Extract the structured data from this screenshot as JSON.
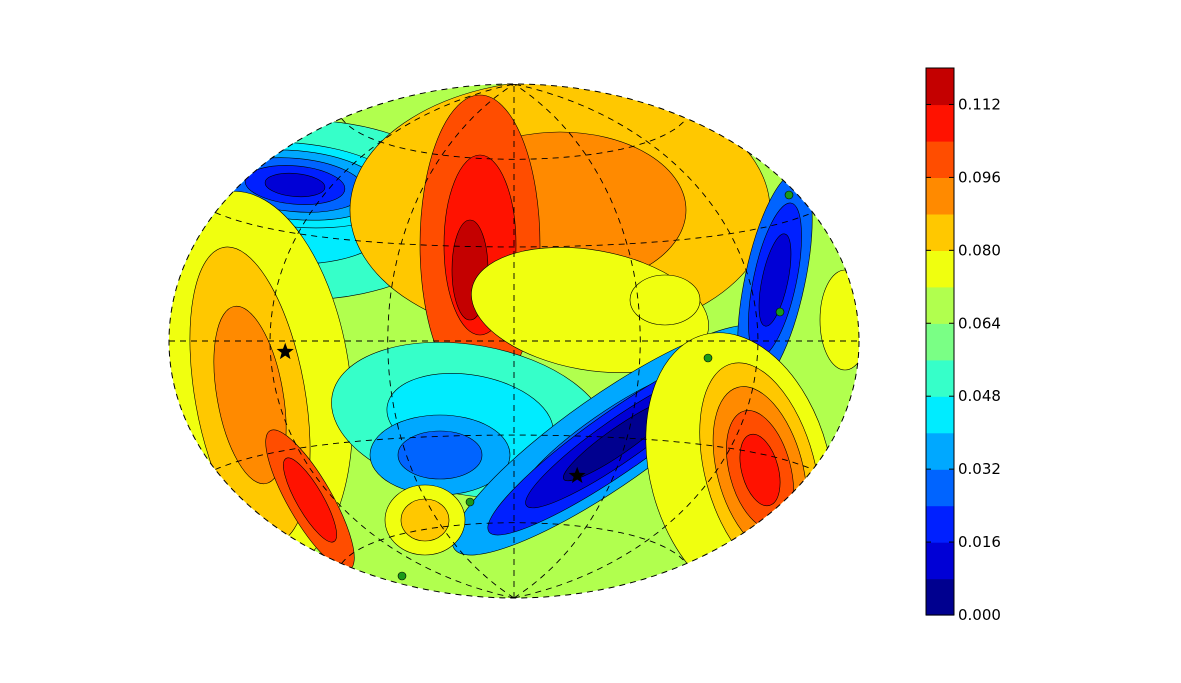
{
  "chart_data": {
    "type": "heatmap",
    "projection": "hammer-aitoff (all-sky)",
    "colormap": "jet",
    "contour_style": "filled with thin black contour lines",
    "graticule": "dashed",
    "title": "",
    "xlabel": "",
    "ylabel": "",
    "colorbar": {
      "range": [
        0.0,
        0.12
      ],
      "levels": [
        0.0,
        0.008,
        0.016,
        0.024,
        0.032,
        0.04,
        0.048,
        0.056,
        0.064,
        0.072,
        0.08,
        0.088,
        0.096,
        0.104,
        0.112,
        0.12
      ],
      "tick_values": [
        0.0,
        0.016,
        0.032,
        0.048,
        0.064,
        0.08,
        0.096,
        0.112
      ],
      "tick_labels": [
        "0.000",
        "0.016",
        "0.032",
        "0.048",
        "0.064",
        "0.080",
        "0.096",
        "0.112"
      ],
      "colors": [
        "#00008f",
        "#0000d6",
        "#0020ff",
        "#0064ff",
        "#00a8ff",
        "#00ecff",
        "#36ffc9",
        "#7aff85",
        "#b1ff4e",
        "#f0ff0f",
        "#ffc800",
        "#ff8a00",
        "#ff4d00",
        "#ff1200",
        "#c40000"
      ]
    },
    "markers": [
      {
        "kind": "star",
        "x": -112,
        "y": -3
      },
      {
        "kind": "star",
        "x": 38,
        "y": -43
      }
    ],
    "background_color": "#b1ff4e"
  }
}
